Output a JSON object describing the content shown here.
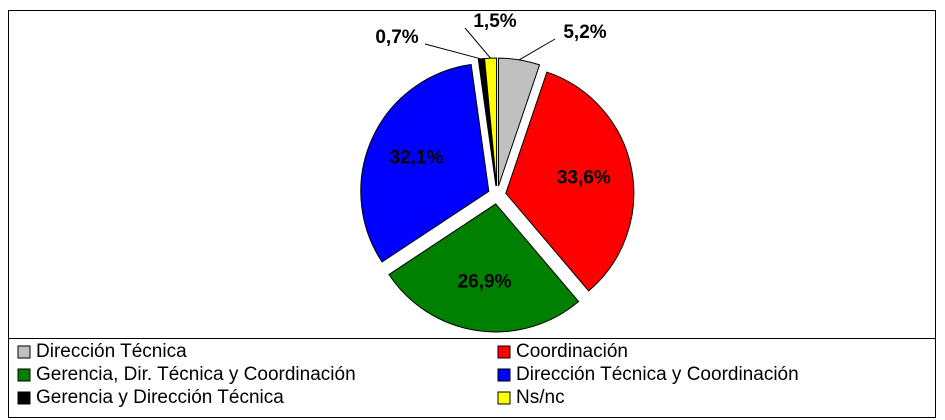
{
  "chart_data": {
    "type": "pie",
    "categories": [
      "Dirección Técnica",
      "Coordinación",
      "Gerencia, Dir. Técnica y Coordinación",
      "Dirección Técnica y Coordinación",
      "Gerencia y Dirección Técnica",
      "Ns/nc"
    ],
    "values": [
      5.2,
      33.6,
      26.9,
      32.1,
      0.7,
      1.5
    ],
    "value_labels": [
      "5,2%",
      "33,6%",
      "26,9%",
      "32,1%",
      "0,7%",
      "1,5%"
    ],
    "colors": [
      "#c0c0c0",
      "#ff0000",
      "#008000",
      "#0000ff",
      "#000000",
      "#ffff00"
    ],
    "legend": "bottom"
  }
}
